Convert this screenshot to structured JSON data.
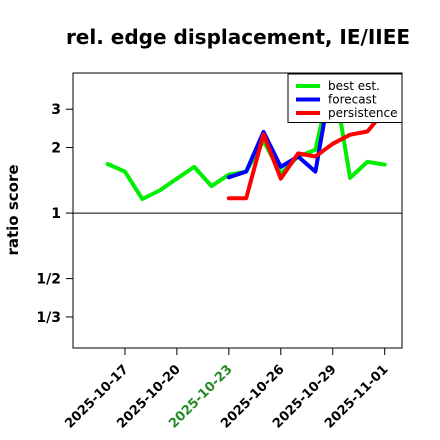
{
  "chart_data": {
    "type": "line",
    "title": "rel. edge displacement, IE/IIEE",
    "ylabel": "ratio score",
    "xlabel": "",
    "x_ticks": [
      {
        "date": "2025-10-17",
        "color": "#000000"
      },
      {
        "date": "2025-10-20",
        "color": "#000000"
      },
      {
        "date": "2025-10-23",
        "color": "#228b22"
      },
      {
        "date": "2025-10-26",
        "color": "#000000"
      },
      {
        "date": "2025-10-29",
        "color": "#000000"
      },
      {
        "date": "2025-11-01",
        "color": "#000000"
      }
    ],
    "y_ticks": [
      {
        "label": "3",
        "value": 3
      },
      {
        "label": "2",
        "value": 2
      },
      {
        "label": "1",
        "value": 1
      },
      {
        "label": "1/2",
        "value": 0.5
      },
      {
        "label": "1/3",
        "value": 0.3333
      }
    ],
    "xlim": [
      "2025-10-14",
      "2025-11-02"
    ],
    "ylim": [
      0.24,
      4.4
    ],
    "y_scale": "log",
    "reference_line": 1,
    "legend_position": "top-right",
    "series": [
      {
        "name": "best est.",
        "color": "#00ee00",
        "points": [
          [
            "2025-10-16",
            1.68
          ],
          [
            "2025-10-17",
            1.55
          ],
          [
            "2025-10-18",
            1.16
          ],
          [
            "2025-10-19",
            1.27
          ],
          [
            "2025-10-20",
            1.44
          ],
          [
            "2025-10-21",
            1.63
          ],
          [
            "2025-10-22",
            1.33
          ],
          [
            "2025-10-23",
            1.5
          ],
          [
            "2025-10-24",
            1.55
          ],
          [
            "2025-10-25",
            2.15
          ],
          [
            "2025-10-26",
            1.52
          ],
          [
            "2025-10-27",
            1.82
          ],
          [
            "2025-10-28",
            1.95
          ],
          [
            "2025-10-29",
            4.4
          ],
          [
            "2025-10-30",
            1.45
          ],
          [
            "2025-10-31",
            1.72
          ],
          [
            "2025-11-01",
            1.67
          ]
        ]
      },
      {
        "name": "forecast",
        "color": "#0000ff",
        "points": [
          [
            "2025-10-23",
            1.46
          ],
          [
            "2025-10-24",
            1.55
          ],
          [
            "2025-10-25",
            2.36
          ],
          [
            "2025-10-26",
            1.63
          ],
          [
            "2025-10-27",
            1.82
          ],
          [
            "2025-10-28",
            1.55
          ],
          [
            "2025-10-29",
            4.4
          ]
        ]
      },
      {
        "name": "persistence",
        "color": "#ff0000",
        "points": [
          [
            "2025-10-23",
            1.17
          ],
          [
            "2025-10-24",
            1.17
          ],
          [
            "2025-10-25",
            2.3
          ],
          [
            "2025-10-26",
            1.44
          ],
          [
            "2025-10-27",
            1.88
          ],
          [
            "2025-10-28",
            1.82
          ],
          [
            "2025-10-29",
            2.08
          ],
          [
            "2025-10-30",
            2.29
          ],
          [
            "2025-10-31",
            2.37
          ],
          [
            "2025-11-01",
            2.95
          ]
        ]
      }
    ]
  }
}
